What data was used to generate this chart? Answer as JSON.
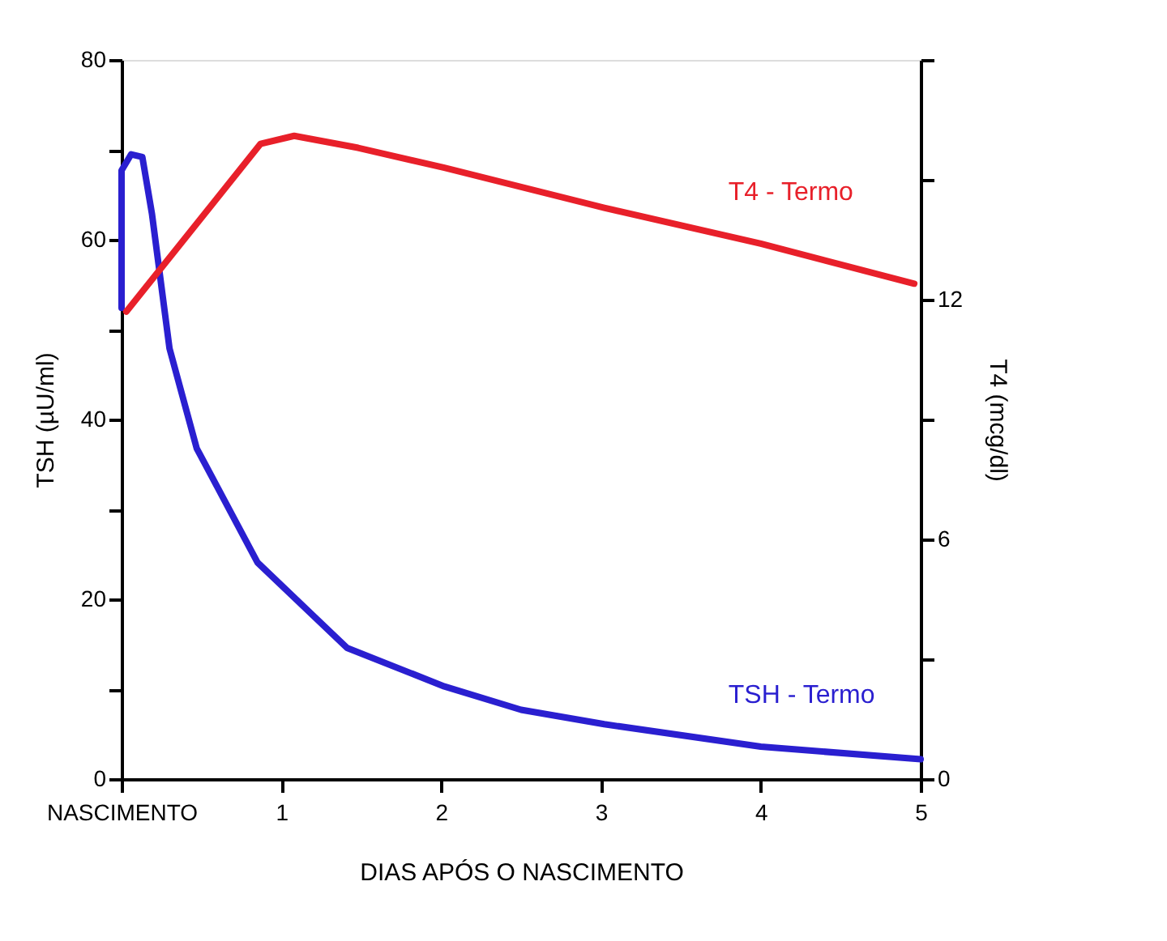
{
  "chart_data": {
    "type": "line",
    "xlabel": "DIAS APÓS O NASCIMENTO",
    "ylabel": "TSH (µU/ml)",
    "y2label": "T4 (mcg/dl)",
    "xlim": [
      0,
      5
    ],
    "xticks": [
      {
        "value": 0,
        "label": "NASCIMENTO"
      },
      1,
      2,
      3,
      4,
      5
    ],
    "ylim": [
      0,
      80
    ],
    "yticks": [
      0,
      {
        "value": 10,
        "label": null
      },
      20,
      {
        "value": 30,
        "label": null
      },
      40,
      {
        "value": 50,
        "label": null
      },
      60,
      {
        "value": 70,
        "label": null
      },
      80
    ],
    "y2lim": [
      0,
      18
    ],
    "y2ticks": [
      0,
      {
        "value": 3,
        "label": null
      },
      6,
      {
        "value": 9,
        "label": null
      },
      12,
      {
        "value": 15,
        "label": null
      },
      {
        "value": 18,
        "label": null
      }
    ],
    "grid": false,
    "legend": false,
    "marker": "none",
    "line_style": "solid",
    "series": [
      {
        "name": "TSH - Termo",
        "color": "#2a1fd0",
        "x": [
          0,
          0.0,
          0.06,
          0.13,
          0.19,
          0.3,
          0.47,
          0.85,
          1.41,
          2.02,
          2.5,
          3.02,
          4.0,
          5.0
        ],
        "values": [
          52.4,
          67.7,
          69.5,
          69.2,
          62.9,
          47.9,
          36.8,
          24.1,
          14.6,
          10.3,
          7.7,
          6.1,
          3.6,
          2.2
        ]
      },
      {
        "name": "T4 - Termo",
        "color": "#e8202a",
        "axis": "y2",
        "x": [
          0.03,
          0.87,
          1.08,
          1.48,
          2.02,
          3.02,
          4.0,
          4.96
        ],
        "values": [
          11.7,
          15.9,
          16.1,
          15.8,
          15.3,
          14.3,
          13.4,
          12.4
        ]
      }
    ]
  }
}
